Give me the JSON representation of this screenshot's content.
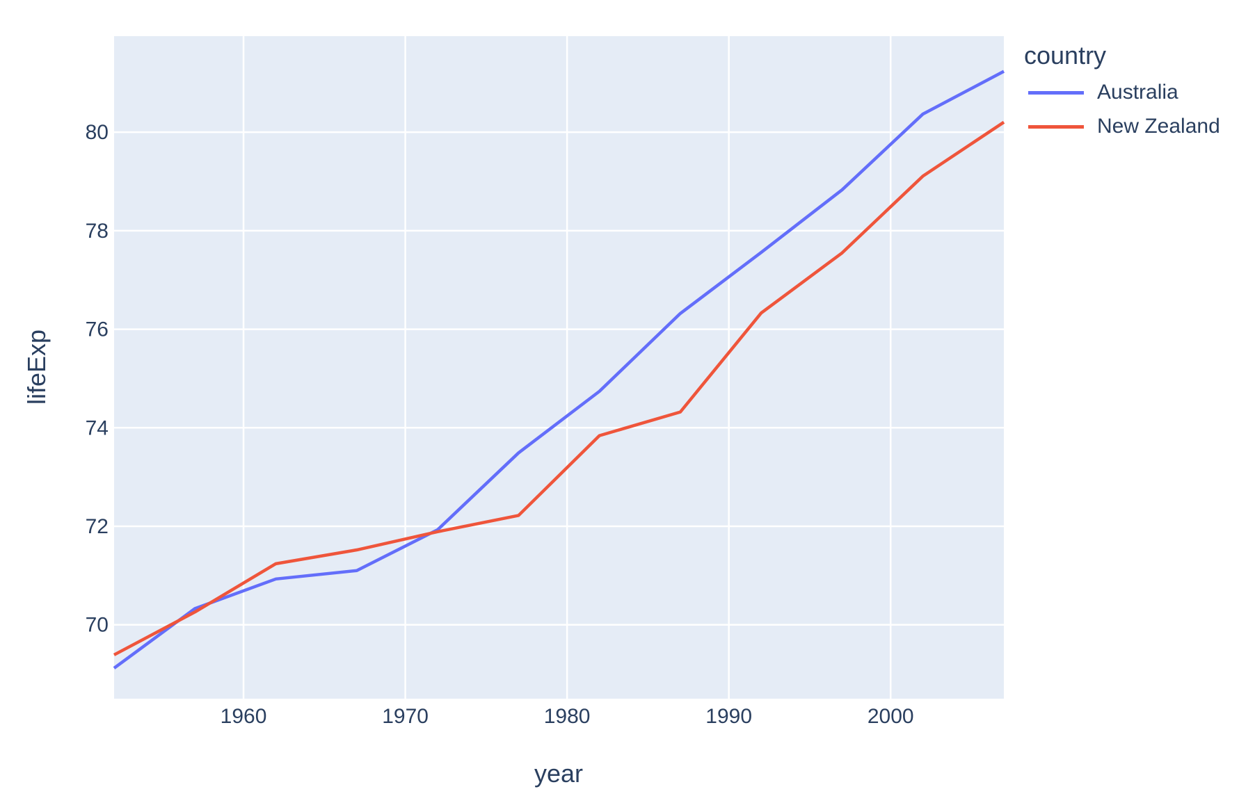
{
  "figure": {
    "background": "#ffffff",
    "plot_background": "#E5ECF6",
    "grid_color": "#ffffff",
    "text_color": "#2a3f5f",
    "xlabel": "year",
    "ylabel": "lifeExp",
    "legend_title": "country"
  },
  "chart_data": {
    "type": "line",
    "title": "",
    "xlabel": "year",
    "ylabel": "lifeExp",
    "legend_title": "country",
    "legend_position": "top-right-outside",
    "grid": true,
    "x": [
      1952,
      1957,
      1962,
      1967,
      1972,
      1977,
      1982,
      1987,
      1992,
      1997,
      2002,
      2007
    ],
    "series": [
      {
        "name": "Australia",
        "color": "#636EFA",
        "values": [
          69.12,
          70.33,
          70.93,
          71.1,
          71.93,
          73.49,
          74.74,
          76.32,
          77.56,
          78.83,
          80.37,
          81.235
        ]
      },
      {
        "name": "New Zealand",
        "color": "#EF553B",
        "values": [
          69.39,
          70.26,
          71.24,
          71.52,
          71.89,
          72.22,
          73.84,
          74.32,
          76.33,
          77.55,
          79.11,
          80.204
        ]
      }
    ],
    "xlim": [
      1952,
      2007
    ],
    "ylim": [
      68.5,
      81.95
    ],
    "xticks": [
      1960,
      1970,
      1980,
      1990,
      2000
    ],
    "yticks": [
      70,
      72,
      74,
      76,
      78,
      80
    ]
  }
}
